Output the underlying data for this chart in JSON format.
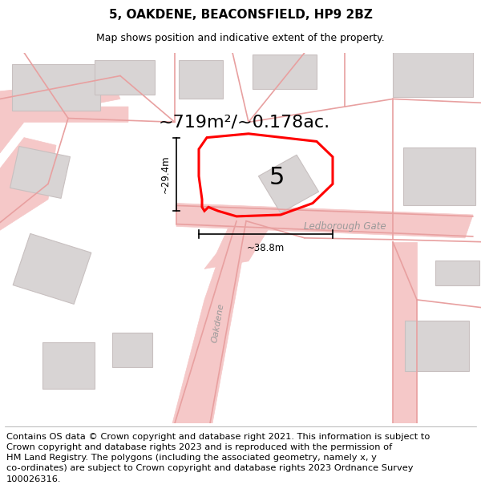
{
  "title": "5, OAKDENE, BEACONSFIELD, HP9 2BZ",
  "subtitle": "Map shows position and indicative extent of the property.",
  "footer": "Contains OS data © Crown copyright and database right 2021. This information is subject to\nCrown copyright and database rights 2023 and is reproduced with the permission of\nHM Land Registry. The polygons (including the associated geometry, namely x, y\nco-ordinates) are subject to Crown copyright and database rights 2023 Ordnance Survey\n100026316.",
  "area_text": "~719m²/~0.178ac.",
  "street_label": "Ledborough Gate",
  "road_label": "Oakdene",
  "plot_number": "5",
  "dim_width": "~38.8m",
  "dim_height": "~29.4m",
  "background_color": "#ffffff",
  "map_bg": "#faf7f7",
  "road_color": "#f5c8c8",
  "building_fill": "#d8d4d4",
  "building_stroke": "#c8c0c0",
  "title_fontsize": 11,
  "subtitle_fontsize": 9,
  "footer_fontsize": 8.2
}
